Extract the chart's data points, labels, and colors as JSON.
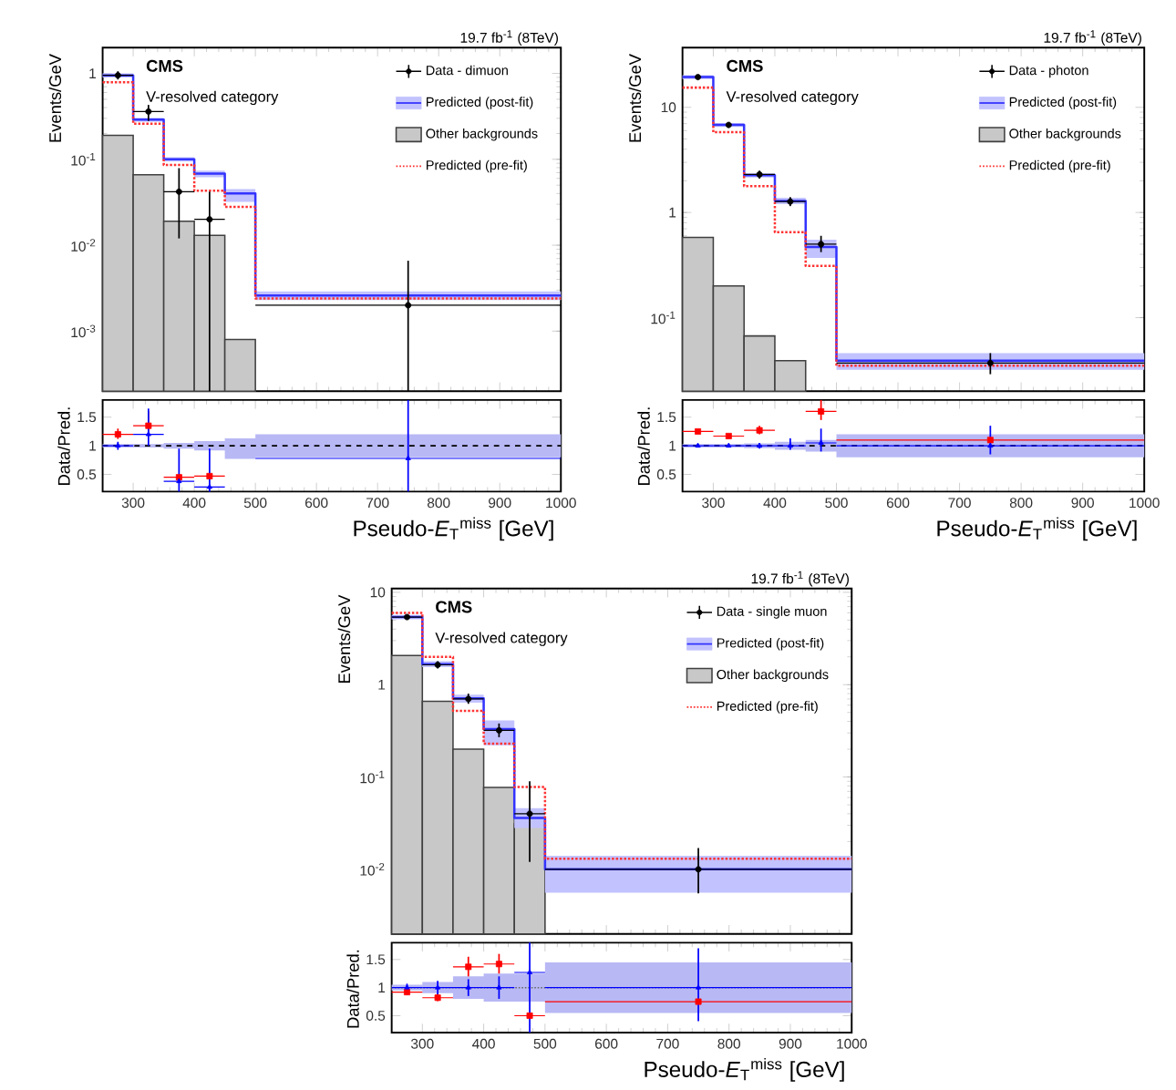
{
  "chart_data": [
    {
      "type": "step",
      "annotations": [
        "19.7 fb$^{-1}$ (8TeV)",
        "CMS",
        "V-resolved category"
      ],
      "ylabel": "Events/GeV",
      "xlim": [
        250,
        1000
      ],
      "xticks": [
        300,
        400,
        500,
        600,
        700,
        800,
        900,
        1000
      ],
      "ylim": [
        0.0002,
        2
      ],
      "yticks": [
        {
          "value": 0.001,
          "label": "10$^{-3}$"
        },
        {
          "value": 0.01,
          "label": "10$^{-2}$"
        },
        {
          "value": 0.1,
          "label": "10$^{-1}$"
        },
        {
          "value": 1,
          "label": "1"
        }
      ],
      "log": true,
      "tick_labels": "y",
      "legend": "top right",
      "series": [
        {
          "name": "Data - dimuon",
          "type": "scatter",
          "marker": "circle",
          "color": "#000000",
          "x": [
            275,
            325,
            375,
            425,
            750
          ],
          "values": [
            0.95,
            0.36,
            0.042,
            0.02,
            0.002
          ],
          "errors": [
            [
              0.85,
              1.06
            ],
            [
              0.28,
              0.43
            ],
            [
              0.012,
              0.079
            ],
            [
              0.0002,
              0.042
            ],
            [
              0.0002,
              0.0066
            ]
          ],
          "xerrors": [
            25,
            25,
            25,
            25,
            250
          ]
        },
        {
          "name": "Predicted (post-fit)",
          "color": "#3333ff",
          "x": [
            250,
            300,
            350,
            400,
            450,
            500,
            1000
          ],
          "values": [
            0.95,
            0.29,
            0.1,
            0.068,
            0.04,
            0.0026,
            0.0026
          ],
          "lower": [
            0.9,
            0.275,
            0.094,
            0.062,
            0.032,
            0.0023,
            0.0023
          ],
          "upper": [
            1.0,
            0.305,
            0.106,
            0.074,
            0.045,
            0.0029,
            0.0029
          ]
        },
        {
          "name": "Other backgrounds",
          "type": "histogram",
          "color": "#c8c8c8",
          "bins": [
            250,
            300,
            350,
            400,
            450,
            500
          ],
          "values": [
            0.19,
            0.066,
            0.019,
            0.013,
            0.0008
          ]
        },
        {
          "name": "Predicted (pre-fit)",
          "line_style": "dotted",
          "color": "#ff3333",
          "x": [
            250,
            300,
            350,
            400,
            450,
            500,
            1000
          ],
          "values": [
            0.79,
            0.26,
            0.086,
            0.043,
            0.028,
            0.0024,
            0.0024
          ]
        }
      ]
    },
    {
      "type": "scatter",
      "xlabel": "Pseudo-*E*$_{T}$$^{miss}$ [GeV]",
      "ylabel": "Data/Pred.",
      "xlim": [
        250,
        1000
      ],
      "xticks": [
        300,
        400,
        500,
        600,
        700,
        800,
        900,
        1000
      ],
      "ylim": [
        0.2,
        1.8
      ],
      "yticks": [
        0.5,
        1,
        1.5
      ],
      "ref_lines": [
        {
          "axis": "y",
          "value": 1,
          "color": "#000000",
          "line_style": "dashed"
        }
      ],
      "series": [
        {
          "type": "area",
          "color": "#b8b8f5",
          "x": [
            250,
            300,
            350,
            400,
            450,
            500,
            1000
          ],
          "values": [
            null,
            null,
            null,
            null,
            null,
            null,
            null
          ],
          "lower": [
            0.97,
            0.97,
            0.95,
            0.92,
            0.77,
            0.8,
            0.8
          ],
          "upper": [
            1.03,
            1.03,
            1.05,
            1.08,
            1.13,
            1.2,
            1.2
          ]
        },
        {
          "marker": "square",
          "color": "#ff0000",
          "x": [
            275,
            325,
            375,
            425
          ],
          "values": [
            1.2,
            1.35,
            0.45,
            0.47
          ],
          "errors": [
            [
              1.12,
              1.3
            ],
            [
              1.25,
              1.6
            ],
            null,
            null
          ],
          "xerrors": [
            25,
            25,
            25,
            25
          ]
        },
        {
          "marker": "triangle",
          "color": "#0000ff",
          "x": [
            275,
            325,
            375,
            425,
            750
          ],
          "values": [
            1.0,
            1.2,
            0.38,
            0.28,
            0.78
          ],
          "errors": [
            [
              0.93,
              1.07
            ],
            [
              1.0,
              1.65
            ],
            [
              0.2,
              0.95
            ],
            [
              0.2,
              0.95
            ],
            [
              0.2,
              1.8
            ]
          ],
          "xerrors": [
            25,
            25,
            25,
            25,
            250
          ]
        }
      ]
    },
    {
      "type": "step",
      "annotations": [
        "19.7 fb$^{-1}$ (8TeV)",
        "CMS",
        "V-resolved category"
      ],
      "ylabel": "Events/GeV",
      "xlim": [
        250,
        1000
      ],
      "xticks": [
        300,
        400,
        500,
        600,
        700,
        800,
        900,
        1000
      ],
      "ylim": [
        0.02,
        37
      ],
      "yticks": [
        {
          "value": 0.1,
          "label": "10$^{-1}$"
        },
        {
          "value": 1,
          "label": "1"
        },
        {
          "value": 10,
          "label": "10"
        }
      ],
      "log": true,
      "tick_labels": "y",
      "legend": "top right",
      "series": [
        {
          "name": "Data - photon",
          "type": "scatter",
          "marker": "circle",
          "color": "#000000",
          "x": [
            275,
            325,
            375,
            425,
            475,
            750
          ],
          "values": [
            19.4,
            6.8,
            2.3,
            1.27,
            0.5,
            0.037
          ],
          "errors": [
            [
              18.5,
              20.3
            ],
            [
              6.4,
              7.2
            ],
            [
              2.1,
              2.5
            ],
            [
              1.15,
              1.4
            ],
            [
              0.42,
              0.6
            ],
            [
              0.029,
              0.046
            ]
          ],
          "xerrors": [
            null,
            null,
            25,
            25,
            25,
            250
          ]
        },
        {
          "name": "Predicted (post-fit)",
          "color": "#3333ff",
          "x": [
            250,
            300,
            350,
            400,
            450,
            500,
            1000
          ],
          "values": [
            19.4,
            6.8,
            2.26,
            1.29,
            0.47,
            0.039,
            0.039
          ],
          "lower": [
            18.6,
            6.5,
            2.15,
            1.2,
            0.37,
            0.032,
            0.032
          ],
          "upper": [
            20.2,
            7.1,
            2.37,
            1.38,
            0.55,
            0.046,
            0.046
          ]
        },
        {
          "name": "Other backgrounds",
          "type": "histogram",
          "color": "#c8c8c8",
          "bins": [
            250,
            300,
            350,
            400,
            450
          ],
          "values": [
            0.58,
            0.2,
            0.067,
            0.039
          ]
        },
        {
          "name": "Predicted (pre-fit)",
          "line_style": "dotted",
          "color": "#ff3333",
          "x": [
            250,
            300,
            350,
            400,
            450,
            500,
            1000
          ],
          "values": [
            15.4,
            5.8,
            1.78,
            0.65,
            0.31,
            0.035,
            0.035
          ]
        }
      ]
    },
    {
      "type": "scatter",
      "xlabel": "Pseudo-*E*$_{T}$$^{miss}$ [GeV]",
      "ylabel": "Data/Pred.",
      "xlim": [
        250,
        1000
      ],
      "xticks": [
        300,
        400,
        500,
        600,
        700,
        800,
        900,
        1000
      ],
      "ylim": [
        0.2,
        1.8
      ],
      "yticks": [
        0.5,
        1,
        1.5
      ],
      "ref_lines": [
        {
          "axis": "y",
          "value": 1,
          "color": "#000000",
          "line_style": "dashed"
        }
      ],
      "series": [
        {
          "type": "area",
          "color": "#b8b8f5",
          "x": [
            250,
            300,
            350,
            400,
            450,
            500,
            1000
          ],
          "values": [
            null,
            null,
            null,
            null,
            null,
            null,
            null
          ],
          "lower": [
            0.97,
            0.97,
            0.96,
            0.93,
            0.9,
            0.8,
            0.8
          ],
          "upper": [
            1.03,
            1.03,
            1.04,
            1.07,
            1.1,
            1.2,
            1.2
          ]
        },
        {
          "marker": "square",
          "color": "#ff0000",
          "x": [
            275,
            325,
            375,
            425,
            475,
            750
          ],
          "values": [
            1.25,
            1.17,
            1.27,
            null,
            1.6,
            1.1
          ],
          "errors": [
            null,
            null,
            [
              1.2,
              1.35
            ],
            null,
            [
              1.45,
              1.8
            ],
            null
          ],
          "xerrors": [
            25,
            25,
            25,
            null,
            25,
            250
          ]
        },
        {
          "marker": "triangle",
          "color": "#0000ff",
          "x": [
            275,
            325,
            375,
            425,
            475,
            750
          ],
          "values": [
            1.0,
            1.0,
            1.0,
            1.0,
            1.05,
            1.0
          ],
          "errors": [
            [
              0.97,
              1.03
            ],
            [
              0.97,
              1.03
            ],
            [
              0.95,
              1.05
            ],
            [
              0.93,
              1.13
            ],
            [
              0.9,
              1.3
            ],
            [
              0.85,
              1.35
            ]
          ],
          "xerrors": [
            25,
            25,
            25,
            25,
            25,
            250
          ]
        }
      ]
    },
    {
      "type": "step",
      "annotations": [
        "19.7 fb$^{-1}$ (8TeV)",
        "CMS",
        "V-resolved category"
      ],
      "ylabel": "Events/GeV",
      "xlim": [
        250,
        1000
      ],
      "xticks": [
        300,
        400,
        500,
        600,
        700,
        800,
        900,
        1000
      ],
      "ylim": [
        0.002,
        11
      ],
      "yticks": [
        {
          "value": 0.01,
          "label": "10$^{-2}$"
        },
        {
          "value": 0.1,
          "label": "10$^{-1}$"
        },
        {
          "value": 1,
          "label": "1"
        },
        {
          "value": 10,
          "label": "10"
        }
      ],
      "log": true,
      "tick_labels": "y",
      "legend": "top right",
      "series": [
        {
          "name": "Data - single muon",
          "type": "scatter",
          "marker": "circle",
          "color": "#000000",
          "x": [
            275,
            325,
            375,
            425,
            475,
            750
          ],
          "values": [
            5.4,
            1.64,
            0.7,
            0.32,
            0.04,
            0.01
          ],
          "errors": [
            [
              5.1,
              5.7
            ],
            [
              1.5,
              1.8
            ],
            [
              0.62,
              0.8
            ],
            [
              0.27,
              0.38
            ],
            [
              0.012,
              0.09
            ],
            [
              0.0055,
              0.017
            ]
          ],
          "xerrors": [
            25,
            25,
            25,
            25,
            25,
            250
          ]
        },
        {
          "name": "Predicted (post-fit)",
          "color": "#3333ff",
          "x": [
            250,
            300,
            350,
            400,
            450,
            500,
            1000
          ],
          "values": [
            5.4,
            1.67,
            0.71,
            0.33,
            0.036,
            0.01,
            0.01
          ],
          "lower": [
            5.1,
            1.55,
            0.64,
            0.22,
            0.028,
            0.0056,
            0.0056
          ],
          "upper": [
            5.7,
            1.8,
            0.78,
            0.41,
            0.046,
            0.014,
            0.014
          ]
        },
        {
          "name": "Other backgrounds",
          "type": "histogram",
          "color": "#c8c8c8",
          "bins": [
            250,
            300,
            350,
            400,
            450,
            500
          ],
          "values": [
            2.07,
            0.66,
            0.2,
            0.077,
            0.031
          ]
        },
        {
          "name": "Predicted (pre-fit)",
          "line_style": "dotted",
          "color": "#ff3333",
          "x": [
            250,
            300,
            350,
            400,
            450,
            500,
            1000
          ],
          "values": [
            6.0,
            2.0,
            0.52,
            0.23,
            0.078,
            0.013,
            0.013
          ]
        }
      ]
    },
    {
      "type": "scatter",
      "xlabel": "Pseudo-*E*$_{T}$$^{miss}$ [GeV]",
      "ylabel": "Data/Pred.",
      "xlim": [
        250,
        1000
      ],
      "xticks": [
        300,
        400,
        500,
        600,
        700,
        800,
        900,
        1000
      ],
      "ylim": [
        0.2,
        1.8
      ],
      "yticks": [
        0.5,
        1,
        1.5
      ],
      "ref_lines": [
        {
          "axis": "y",
          "value": 1,
          "color": "#666666",
          "line_style": "dotted"
        }
      ],
      "series": [
        {
          "type": "area",
          "color": "#b8b8f5",
          "x": [
            250,
            300,
            350,
            400,
            450,
            500,
            1000
          ],
          "values": [
            null,
            null,
            null,
            null,
            null,
            null,
            null
          ],
          "lower": [
            0.95,
            0.9,
            0.8,
            0.75,
            0.75,
            0.55,
            0.55
          ],
          "upper": [
            1.05,
            1.1,
            1.2,
            1.25,
            1.25,
            1.45,
            1.45
          ]
        },
        {
          "marker": "square",
          "color": "#ff0000",
          "x": [
            275,
            325,
            375,
            425,
            475,
            750
          ],
          "values": [
            0.92,
            0.82,
            1.37,
            1.42,
            0.5,
            0.75
          ],
          "errors": [
            [
              0.87,
              0.97
            ],
            [
              0.76,
              0.9
            ],
            [
              1.2,
              1.55
            ],
            [
              1.25,
              1.6
            ],
            null,
            null
          ],
          "xerrors": [
            25,
            25,
            25,
            25,
            25,
            250
          ]
        },
        {
          "marker": "triangle",
          "color": "#0000ff",
          "x": [
            275,
            325,
            375,
            425,
            475,
            750
          ],
          "values": [
            1.0,
            1.0,
            1.0,
            1.0,
            1.27,
            1.0
          ],
          "errors": [
            [
              0.93,
              1.07
            ],
            [
              0.88,
              1.12
            ],
            [
              0.85,
              1.15
            ],
            [
              0.8,
              1.2
            ],
            [
              0.2,
              1.8
            ],
            [
              0.4,
              1.7
            ]
          ],
          "xerrors": [
            25,
            25,
            25,
            25,
            25,
            250
          ]
        }
      ]
    }
  ]
}
